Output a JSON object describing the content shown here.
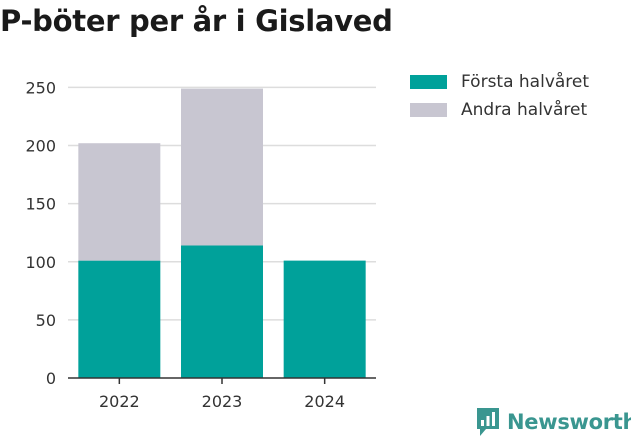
{
  "title": "P-böter per år i Gislaved",
  "brand": {
    "name": "Newsworthy",
    "icon": "newsworthy-logo-icon",
    "color": "#3a9690"
  },
  "chart_data": {
    "type": "bar",
    "stacked": true,
    "title": "P-böter per år i Gislaved",
    "categories": [
      "2022",
      "2023",
      "2024"
    ],
    "series": [
      {
        "name": "Första halvåret",
        "color": "#00a19a",
        "values": [
          101,
          114,
          101
        ]
      },
      {
        "name": "Andra halvåret",
        "color": "#c8c6d1",
        "values": [
          101,
          135,
          null
        ]
      }
    ],
    "ylim": [
      0,
      265
    ],
    "yticks": [
      0,
      50,
      100,
      150,
      200,
      250
    ],
    "grid": true,
    "legend": "top-right",
    "xlabel": "",
    "ylabel": ""
  }
}
